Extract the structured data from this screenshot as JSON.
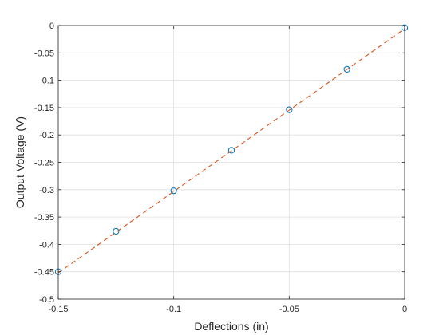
{
  "chart_data": {
    "type": "scatter",
    "title": "",
    "xlabel": "Deflections (in)",
    "ylabel": "Output Voltage (V)",
    "xlim": [
      -0.15,
      0
    ],
    "ylim": [
      -0.5,
      0
    ],
    "grid": true,
    "xticks": [
      -0.15,
      -0.1,
      -0.05,
      0
    ],
    "xtick_labels": [
      "-0.15",
      "-0.1",
      "-0.05",
      "0"
    ],
    "yticks": [
      0,
      -0.05,
      -0.1,
      -0.15,
      -0.2,
      -0.25,
      -0.3,
      -0.35,
      -0.4,
      -0.45,
      -0.5
    ],
    "ytick_labels": [
      "0",
      "-0.05",
      "-0.1",
      "-0.15",
      "-0.2",
      "-0.25",
      "-0.3",
      "-0.35",
      "-0.4",
      "-0.45",
      "-0.5"
    ],
    "series": [
      {
        "kind": "markers",
        "marker": "circle-open",
        "color": "#0072BD",
        "x": [
          -0.15,
          -0.125,
          -0.1,
          -0.075,
          -0.05,
          -0.025,
          0
        ],
        "y": [
          -0.45,
          -0.376,
          -0.302,
          -0.228,
          -0.154,
          -0.08,
          -0.004
        ]
      },
      {
        "kind": "line",
        "style": "dashed",
        "color": "#D95319",
        "x": [
          -0.15,
          0
        ],
        "y": [
          -0.452,
          -0.006
        ]
      }
    ]
  }
}
